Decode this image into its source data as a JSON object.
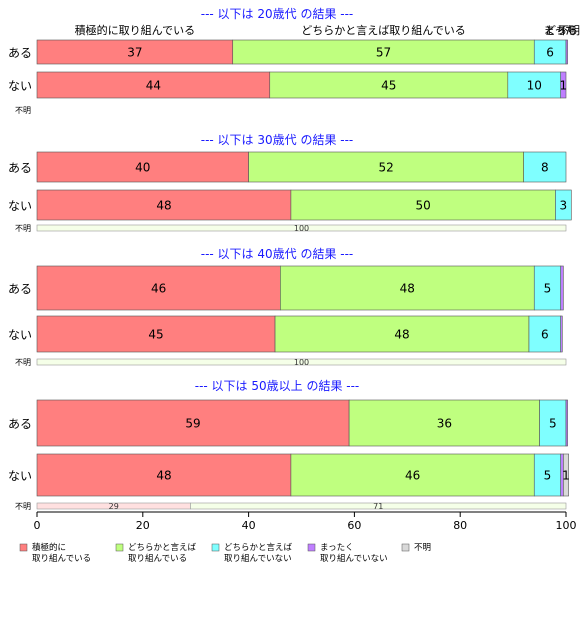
{
  "chart_data": {
    "type": "bar",
    "orientation": "horizontal",
    "stacked": true,
    "xlim": [
      0,
      100
    ],
    "x_ticks": [
      "0",
      "20",
      "40",
      "60",
      "80",
      "100"
    ],
    "top_category_labels": [
      "積極的に取り組んでいる",
      "どちらかと言えば取り組んでいる",
      "どちらかと言えば取り組んでいない",
      "まったく取り組んでいない",
      "不明"
    ],
    "segment_colors": [
      "#FF7F7F",
      "#BFFF7F",
      "#7FFFFF",
      "#BF7FFF",
      "#D9D9D9"
    ],
    "legend": {
      "position": "bottom",
      "items": [
        {
          "label": "積極的に\n取り組んでいる",
          "color": "#FF7F7F"
        },
        {
          "label": "どちらかと言えば\n取り組んでいる",
          "color": "#BFFF7F"
        },
        {
          "label": "どちらかと言えば\n取り組んでいない",
          "color": "#7FFFFF"
        },
        {
          "label": "まったく\n取り組んでいない",
          "color": "#BF7FFF"
        },
        {
          "label": "不明",
          "color": "#D9D9D9"
        }
      ]
    },
    "panels": [
      {
        "title": "--- 以下は 20歳代 の結果 ---",
        "rows": [
          {
            "label": "ある",
            "values": [
              37,
              57,
              6,
              0.3,
              0
            ],
            "labels": [
              "37",
              "57",
              "6",
              "",
              ""
            ]
          },
          {
            "label": "ない",
            "values": [
              44,
              45,
              10,
              1,
              0
            ],
            "labels": [
              "44",
              "45",
              "10",
              "1",
              ""
            ]
          }
        ],
        "unknown": {
          "label": "不明",
          "values": [
            0,
            0,
            0,
            0,
            0
          ],
          "labels": [
            "",
            "",
            "",
            "",
            ""
          ]
        }
      },
      {
        "title": "--- 以下は 30歳代 の結果 ---",
        "rows": [
          {
            "label": "ある",
            "values": [
              40,
              52,
              8,
              0,
              0
            ],
            "labels": [
              "40",
              "52",
              "8",
              "",
              ""
            ]
          },
          {
            "label": "ない",
            "values": [
              48,
              50,
              3,
              0,
              0
            ],
            "labels": [
              "48",
              "50",
              "3",
              "",
              ""
            ]
          }
        ],
        "unknown": {
          "label": "不明",
          "values": [
            0,
            0,
            0,
            0,
            100
          ],
          "labels": [
            "",
            "",
            "",
            "",
            "100"
          ]
        }
      },
      {
        "title": "--- 以下は 40歳代 の結果 ---",
        "rows": [
          {
            "label": "ある",
            "values": [
              46,
              48,
              5,
              0.5,
              0
            ],
            "labels": [
              "46",
              "48",
              "5",
              "",
              ""
            ]
          },
          {
            "label": "ない",
            "values": [
              45,
              48,
              6,
              0.3,
              0
            ],
            "labels": [
              "45",
              "48",
              "6",
              "",
              ""
            ]
          }
        ],
        "unknown": {
          "label": "不明",
          "values": [
            0,
            0,
            0,
            0,
            100
          ],
          "labels": [
            "",
            "",
            "",
            "",
            "100"
          ]
        }
      },
      {
        "title": "--- 以下は 50歳以上 の結果 ---",
        "rows": [
          {
            "label": "ある",
            "values": [
              59,
              36,
              5,
              0.3,
              0
            ],
            "labels": [
              "59",
              "36",
              "5",
              "",
              ""
            ]
          },
          {
            "label": "ない",
            "values": [
              48,
              46,
              5,
              0.5,
              1
            ],
            "labels": [
              "48",
              "46",
              "5",
              "",
              "1"
            ]
          }
        ],
        "unknown": {
          "label": "不明",
          "values": [
            29,
            0,
            0,
            0,
            71
          ],
          "labels": [
            "29",
            "",
            "",
            "",
            "71"
          ]
        }
      }
    ]
  }
}
